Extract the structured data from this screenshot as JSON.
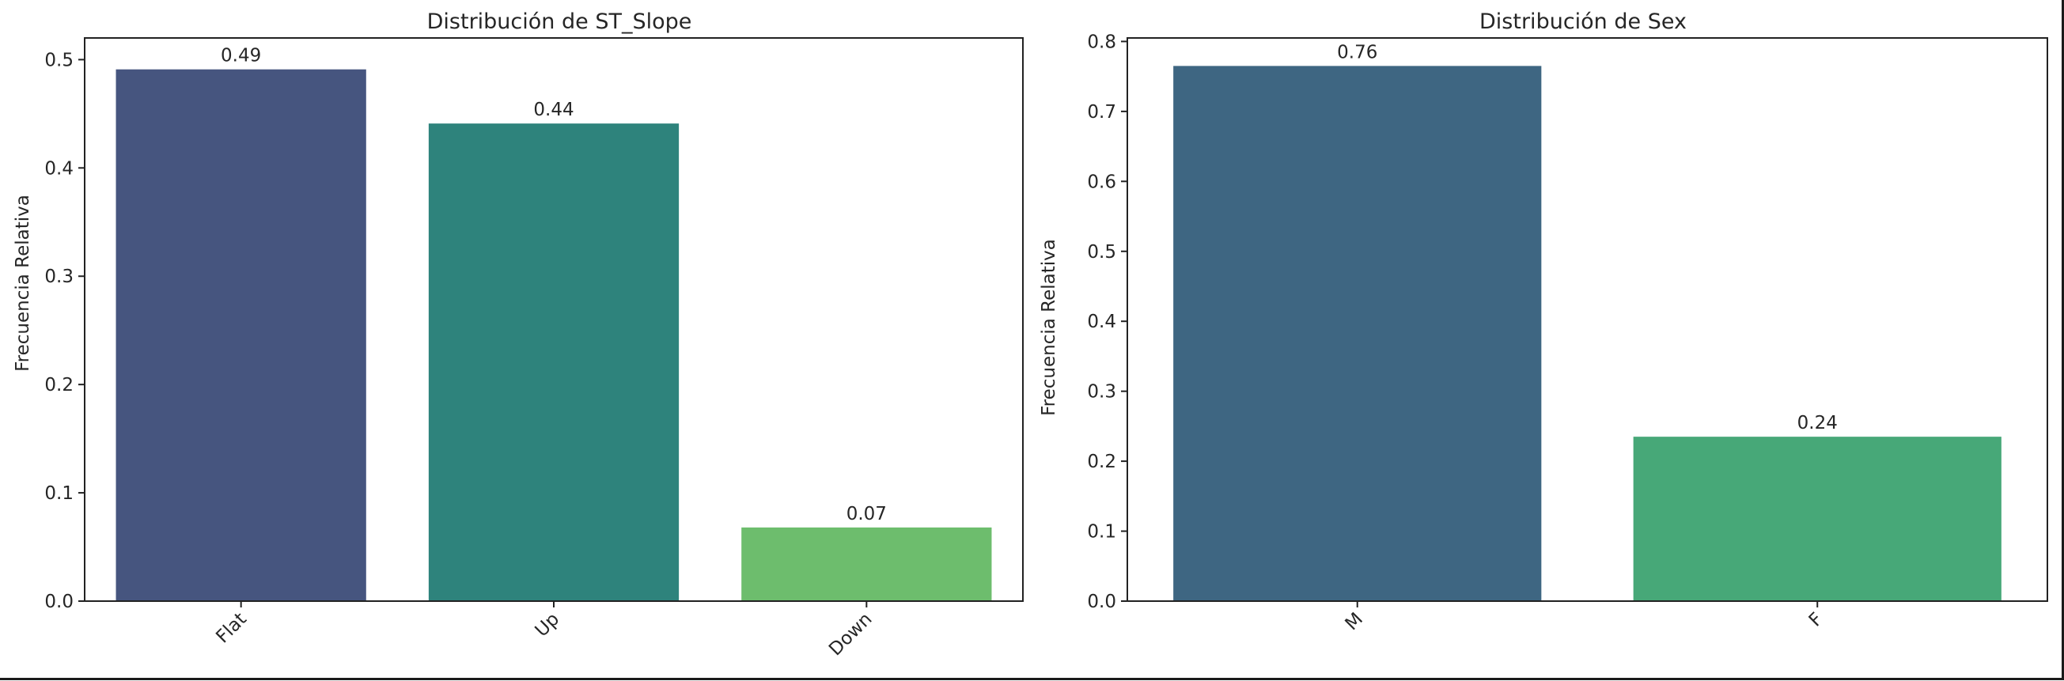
{
  "chart_data": [
    {
      "type": "bar",
      "title": "Distribución de ST_Slope",
      "xlabel": "",
      "ylabel": "Frecuencia Relativa",
      "categories": [
        "Flat",
        "Up",
        "Down"
      ],
      "values": [
        0.49,
        0.44,
        0.07
      ],
      "bar_values": [
        0.491,
        0.441,
        0.068
      ],
      "colors": [
        "#46557f",
        "#2e837c",
        "#6dbd6d"
      ],
      "ylim": [
        0,
        0.52
      ],
      "yticks": [
        0.0,
        0.1,
        0.2,
        0.3,
        0.4,
        0.5
      ],
      "ytick_labels": [
        "0.0",
        "0.1",
        "0.2",
        "0.3",
        "0.4",
        "0.5"
      ],
      "xtick_rotation": -45,
      "grid": false,
      "legend": "none"
    },
    {
      "type": "bar",
      "title": "Distribución de Sex",
      "xlabel": "",
      "ylabel": "Frecuencia Relativa",
      "categories": [
        "M",
        "F"
      ],
      "values": [
        0.76,
        0.24
      ],
      "bar_values": [
        0.765,
        0.235
      ],
      "colors": [
        "#3e6682",
        "#47a878"
      ],
      "ylim": [
        0,
        0.805
      ],
      "yticks": [
        0.0,
        0.1,
        0.2,
        0.3,
        0.4,
        0.5,
        0.6,
        0.7,
        0.8
      ],
      "ytick_labels": [
        "0.0",
        "0.1",
        "0.2",
        "0.3",
        "0.4",
        "0.5",
        "0.6",
        "0.7",
        "0.8"
      ],
      "xtick_rotation": -45,
      "grid": false,
      "legend": "none"
    }
  ]
}
